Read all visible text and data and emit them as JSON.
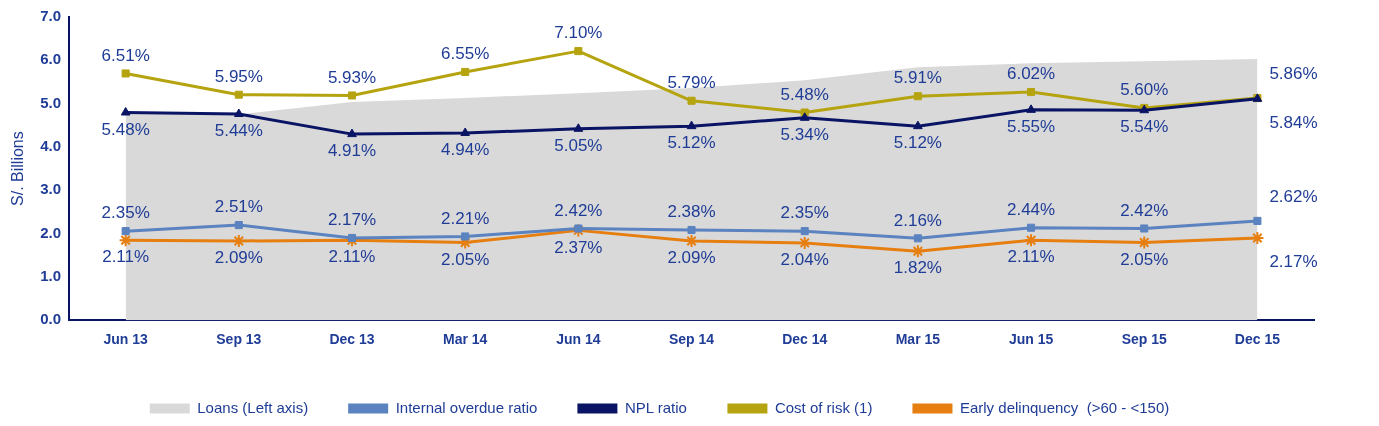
{
  "chart_data": {
    "type": "line",
    "ylabel": "S/. Billions",
    "categories": [
      "Jun 13",
      "Sep 13",
      "Dec 13",
      "Mar 14",
      "Jun 14",
      "Sep 14",
      "Dec 14",
      "Mar 15",
      "Jun 15",
      "Sep 15",
      "Dec 15"
    ],
    "ylim": [
      0,
      7
    ],
    "yticks": [
      {
        "value": 0,
        "label": "0.0"
      },
      {
        "value": 1,
        "label": "1.0"
      },
      {
        "value": 2,
        "label": "2.0"
      },
      {
        "value": 3,
        "label": "3.0"
      },
      {
        "value": 4,
        "label": "4.0"
      },
      {
        "value": 5,
        "label": "5.0"
      },
      {
        "value": 6,
        "label": "6.0"
      },
      {
        "value": 7,
        "label": "7.0"
      }
    ],
    "grid": false,
    "legend": "bottom",
    "series": [
      {
        "name": "Loans (Left axis)",
        "type": "area",
        "color": "#d9d9d9",
        "values": [
          4.77,
          4.75,
          5.04,
          5.13,
          5.24,
          5.36,
          5.54,
          5.84,
          5.93,
          5.98,
          6.03
        ]
      },
      {
        "name": "Internal overdue ratio",
        "axis": "y2",
        "marker": "square",
        "color": "#5b83c0",
        "values": [
          2.35,
          2.51,
          2.17,
          2.21,
          2.42,
          2.38,
          2.35,
          2.16,
          2.44,
          2.42,
          2.62
        ],
        "value_labels": [
          "2.35%",
          "2.51%",
          "2.17%",
          "2.21%",
          "2.42%",
          "2.38%",
          "2.35%",
          "2.16%",
          "2.44%",
          "2.42%",
          "2.62%"
        ]
      },
      {
        "name": "NPL ratio",
        "axis": "y2",
        "marker": "triangle",
        "color": "#0a1464",
        "values": [
          5.48,
          5.44,
          4.91,
          4.94,
          5.05,
          5.12,
          5.34,
          5.12,
          5.55,
          5.54,
          5.84
        ],
        "value_labels": [
          "5.48%",
          "5.44%",
          "4.91%",
          "4.94%",
          "5.05%",
          "5.12%",
          "5.34%",
          "5.12%",
          "5.55%",
          "5.54%",
          "5.84%"
        ]
      },
      {
        "name": "Cost of risk (1)",
        "axis": "y2",
        "marker": "square",
        "color": "#b5a40f",
        "values": [
          6.51,
          5.95,
          5.93,
          6.55,
          7.1,
          5.79,
          5.48,
          5.91,
          6.02,
          5.6,
          5.86
        ],
        "value_labels": [
          "6.51%",
          "5.95%",
          "5.93%",
          "6.55%",
          "7.10%",
          "5.79%",
          "5.48%",
          "5.91%",
          "6.02%",
          "5.60%",
          "5.86%"
        ]
      },
      {
        "name": "Early delinquency  (>60 - <150)",
        "axis": "y2",
        "marker": "cross",
        "color": "#e67e10",
        "values": [
          2.11,
          2.09,
          2.11,
          2.05,
          2.37,
          2.09,
          2.04,
          1.82,
          2.11,
          2.05,
          2.17
        ],
        "value_labels": [
          "2.11%",
          "2.09%",
          "2.11%",
          "2.05%",
          "2.37%",
          "2.09%",
          "2.04%",
          "1.82%",
          "2.11%",
          "2.05%",
          "2.17%"
        ]
      }
    ]
  }
}
